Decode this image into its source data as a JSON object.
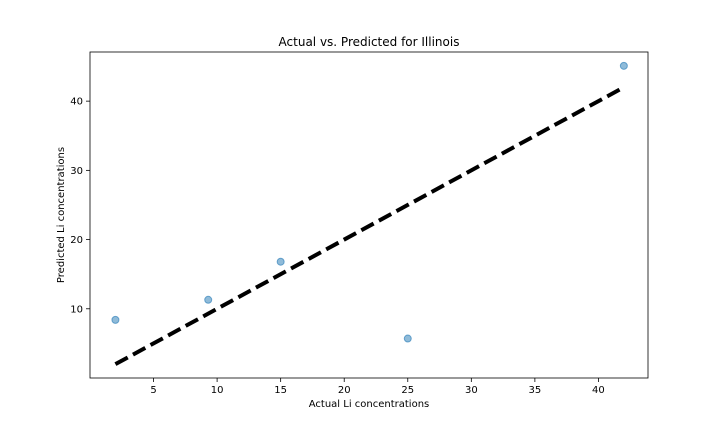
{
  "chart_data": {
    "type": "scatter",
    "title": "Actual vs. Predicted for Illinois",
    "xlabel": "Actual Li concentrations",
    "ylabel": "Predicted Li concentrations",
    "xlim": [
      0.0,
      43.9
    ],
    "ylim": [
      0.0,
      47.1
    ],
    "xticks": [
      5,
      10,
      15,
      20,
      25,
      30,
      35,
      40
    ],
    "yticks": [
      10,
      20,
      30,
      40
    ],
    "grid": false,
    "series": [
      {
        "kind": "points",
        "color": "#1f77b4",
        "x": [
          2.0,
          9.3,
          15.0,
          25.0,
          42.0
        ],
        "y": [
          8.4,
          11.3,
          16.8,
          5.7,
          45.1
        ]
      },
      {
        "kind": "reference-line",
        "color": "#000000",
        "style": "dashed",
        "x": [
          2.0,
          42.0
        ],
        "y": [
          2.0,
          42.0
        ]
      }
    ]
  }
}
